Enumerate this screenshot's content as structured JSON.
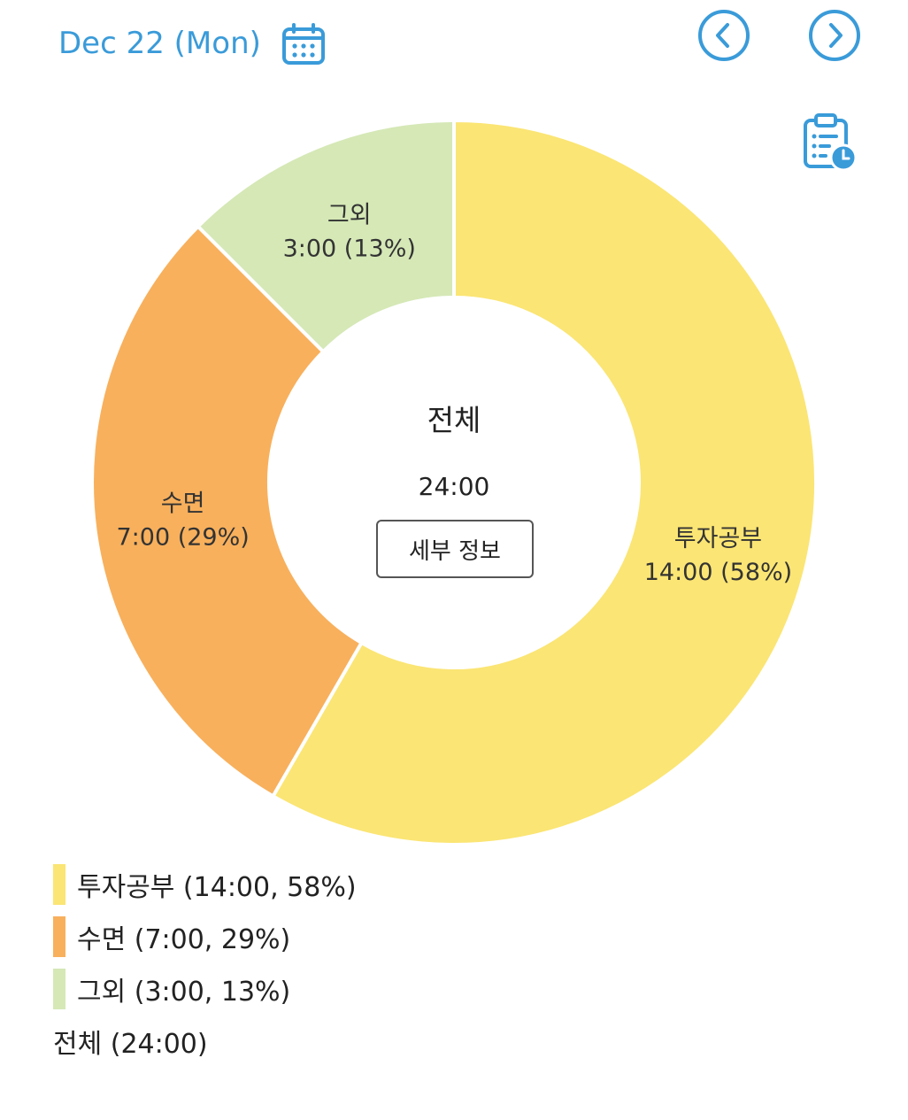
{
  "header": {
    "date": "Dec 22 (Mon)",
    "calendar_icon": "calendar-icon",
    "prev_icon": "chevron-left-circle-icon",
    "next_icon": "chevron-right-circle-icon",
    "clipboard_icon": "clipboard-clock-icon",
    "accent_color": "#3a9bd9"
  },
  "center": {
    "title": "전체",
    "total": "24:00",
    "detail_button": "세부 정보"
  },
  "chart_data": {
    "type": "pie",
    "donut": true,
    "title": "",
    "slices": [
      {
        "name": "투자공부",
        "time": "14:00",
        "value": 14,
        "percent": "58%",
        "color": "#fbe574"
      },
      {
        "name": "수면",
        "time": "7:00",
        "value": 7,
        "percent": "29%",
        "color": "#f8b05c"
      },
      {
        "name": "그외",
        "time": "3:00",
        "value": 3,
        "percent": "13%",
        "color": "#d5e8b6"
      }
    ],
    "legend_placement": "bottom-left"
  },
  "legend": {
    "items": [
      {
        "text": "투자공부 (14:00, 58%)",
        "color": "#fbe574"
      },
      {
        "text": "수면 (7:00, 29%)",
        "color": "#f8b05c"
      },
      {
        "text": "그외 (3:00, 13%)",
        "color": "#d5e8b6"
      }
    ],
    "total": "전체 (24:00)"
  }
}
